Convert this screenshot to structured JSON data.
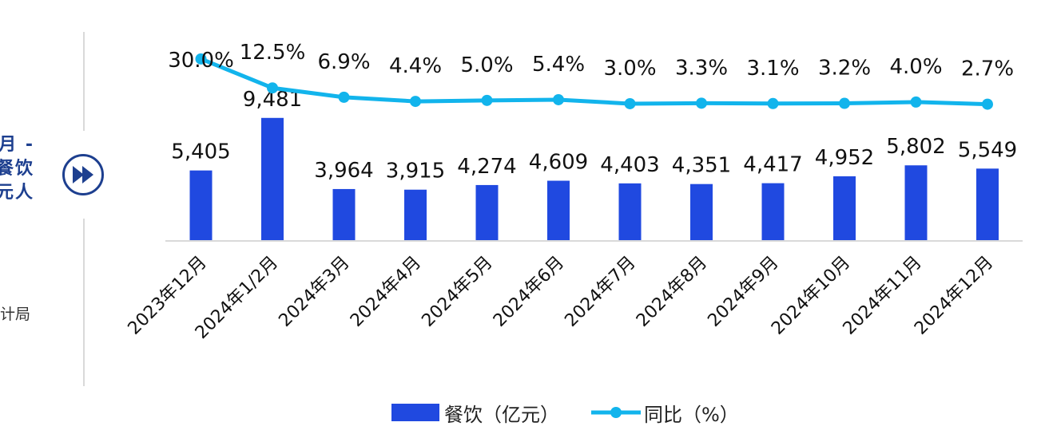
{
  "sidebar": {
    "title_fragment": "月 -\n餐饮\n元人",
    "source_fragment": "计局"
  },
  "legend": {
    "bar_label": "餐饮（亿元）",
    "line_label": "同比（%）"
  },
  "colors": {
    "bar": "#2049e0",
    "line": "#12b4ec",
    "accent": "#1d3f8f"
  },
  "chart_data": {
    "type": "bar",
    "categories": [
      "2023年12月",
      "2024年1/2月",
      "2024年3月",
      "2024年4月",
      "2024年5月",
      "2024年6月",
      "2024年7月",
      "2024年8月",
      "2024年9月",
      "2024年10月",
      "2024年11月",
      "2024年12月"
    ],
    "series": [
      {
        "name": "餐饮（亿元）",
        "type": "bar",
        "values": [
          5405,
          9481,
          3964,
          3915,
          4274,
          4609,
          4403,
          4351,
          4417,
          4952,
          5802,
          5549
        ],
        "labels": [
          "5,405",
          "9,481",
          "3,964",
          "3,915",
          "4,274",
          "4,609",
          "4,403",
          "4,351",
          "4,417",
          "4,952",
          "5,802",
          "5,549"
        ]
      },
      {
        "name": "同比（%）",
        "type": "line",
        "values": [
          30.0,
          12.5,
          6.9,
          4.4,
          5.0,
          5.4,
          3.0,
          3.3,
          3.1,
          3.2,
          4.0,
          2.7
        ],
        "labels": [
          "30.0%",
          "12.5%",
          "6.9%",
          "4.4%",
          "5.0%",
          "5.4%",
          "3.0%",
          "3.3%",
          "3.1%",
          "3.2%",
          "4.0%",
          "2.7%"
        ]
      }
    ],
    "grid": false,
    "legend_position": "bottom"
  }
}
